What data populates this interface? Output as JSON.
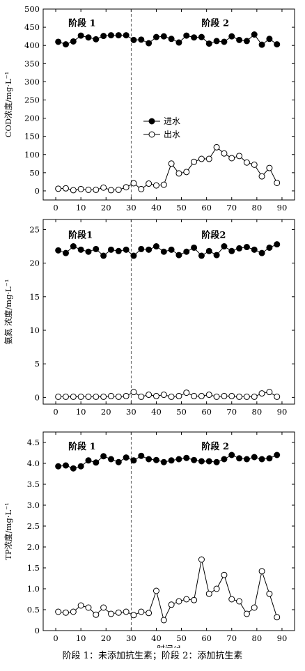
{
  "caption": "阶段 1：未添加抗生素；阶段 2：添加抗生素",
  "chart_data": [
    {
      "type": "line",
      "ylabel": "COD浓度/mg·L⁻¹",
      "xlabel": "",
      "xlim": [
        -5,
        95
      ],
      "ylim": [
        -25,
        500
      ],
      "xticks": [
        0,
        10,
        20,
        30,
        40,
        50,
        60,
        70,
        80,
        90
      ],
      "yticks": [
        0,
        50,
        100,
        150,
        200,
        250,
        300,
        350,
        400,
        450,
        500
      ],
      "stage_divider": 30,
      "stage_labels": [
        "阶段 1",
        "阶段 2"
      ],
      "legend": {
        "position": "middle",
        "entries": [
          "进水",
          "出水"
        ]
      },
      "series": [
        {
          "name": "进水",
          "marker": "filled",
          "x": [
            1,
            4,
            7,
            10,
            13,
            16,
            19,
            22,
            25,
            28,
            31,
            34,
            37,
            40,
            43,
            46,
            49,
            52,
            55,
            58,
            61,
            64,
            67,
            70,
            73,
            76,
            79,
            82,
            85,
            88
          ],
          "y": [
            410,
            403,
            411,
            427,
            422,
            417,
            426,
            428,
            428,
            428,
            415,
            416,
            406,
            423,
            425,
            418,
            408,
            427,
            422,
            423,
            405,
            412,
            410,
            425,
            415,
            412,
            430,
            402,
            418,
            403
          ]
        },
        {
          "name": "出水",
          "marker": "open",
          "x": [
            1,
            4,
            7,
            10,
            13,
            16,
            19,
            22,
            25,
            28,
            31,
            34,
            37,
            40,
            43,
            46,
            49,
            52,
            55,
            58,
            61,
            64,
            67,
            70,
            73,
            76,
            79,
            82,
            85,
            88
          ],
          "y": [
            6,
            7,
            2,
            5,
            3,
            3,
            9,
            2,
            3,
            10,
            21,
            5,
            20,
            15,
            17,
            75,
            48,
            52,
            80,
            88,
            88,
            120,
            103,
            90,
            96,
            78,
            72,
            40,
            63,
            22
          ]
        }
      ]
    },
    {
      "type": "line",
      "ylabel": "氨氮 浓度/mg·L⁻¹",
      "xlabel": "",
      "xlim": [
        -5,
        95
      ],
      "ylim": [
        -1,
        26.5
      ],
      "xticks": [
        0,
        10,
        20,
        30,
        40,
        50,
        60,
        70,
        80,
        90
      ],
      "yticks": [
        0,
        5,
        10,
        15,
        20,
        25
      ],
      "stage_divider": 30,
      "stage_labels": [
        "阶段1",
        "阶段2"
      ],
      "series": [
        {
          "name": "进水",
          "marker": "filled",
          "x": [
            1,
            4,
            7,
            10,
            13,
            16,
            19,
            22,
            25,
            28,
            31,
            34,
            37,
            40,
            43,
            46,
            49,
            52,
            55,
            58,
            61,
            64,
            67,
            70,
            73,
            76,
            79,
            82,
            85,
            88
          ],
          "y": [
            21.9,
            21.5,
            22.5,
            22.0,
            21.7,
            22.1,
            21.1,
            22.0,
            21.8,
            22.0,
            21.1,
            22.1,
            22.0,
            22.5,
            21.7,
            22.0,
            21.2,
            21.7,
            22.3,
            21.1,
            21.8,
            21.2,
            22.5,
            21.8,
            22.2,
            22.4,
            22.0,
            21.5,
            22.3,
            22.8
          ]
        },
        {
          "name": "出水",
          "marker": "open",
          "x": [
            1,
            4,
            7,
            10,
            13,
            16,
            19,
            22,
            25,
            28,
            31,
            34,
            37,
            40,
            43,
            46,
            49,
            52,
            55,
            58,
            61,
            64,
            67,
            70,
            73,
            76,
            79,
            82,
            85,
            88
          ],
          "y": [
            0.1,
            0.1,
            0.1,
            0.1,
            0.1,
            0.1,
            0.1,
            0.2,
            0.1,
            0.2,
            0.8,
            0.1,
            0.4,
            0.2,
            0.4,
            0.1,
            0.2,
            0.7,
            0.2,
            0.2,
            0.4,
            0.1,
            0.2,
            0.2,
            0.1,
            0.1,
            0.1,
            0.6,
            0.8,
            0.1
          ]
        }
      ]
    },
    {
      "type": "line",
      "ylabel": "TP浓度/mg·L⁻¹",
      "xlabel": "时间/d",
      "xlim": [
        -5,
        95
      ],
      "ylim": [
        0,
        4.75
      ],
      "xticks": [
        0,
        10,
        20,
        30,
        40,
        50,
        60,
        70,
        80,
        90
      ],
      "yticks": [
        0,
        0.5,
        1.0,
        1.5,
        2.0,
        2.5,
        3.0,
        3.5,
        4.0,
        4.5
      ],
      "ytick_labels": [
        "0",
        "0.5",
        "1.0",
        "1.5",
        "2.0",
        "2.5",
        "3.0",
        "3.5",
        "4.0",
        "4.5"
      ],
      "stage_divider": 30,
      "stage_labels": [
        "阶段 1",
        "阶段 2"
      ],
      "series": [
        {
          "name": "进水",
          "marker": "filled",
          "x": [
            1,
            4,
            7,
            10,
            13,
            16,
            19,
            22,
            25,
            28,
            31,
            34,
            37,
            40,
            43,
            46,
            49,
            52,
            55,
            58,
            61,
            64,
            67,
            70,
            73,
            76,
            79,
            82,
            85,
            88
          ],
          "y": [
            3.93,
            3.95,
            3.88,
            3.93,
            4.07,
            4.02,
            4.17,
            4.1,
            4.03,
            4.14,
            4.07,
            4.18,
            4.1,
            4.08,
            4.03,
            4.07,
            4.1,
            4.13,
            4.08,
            4.05,
            4.05,
            4.03,
            4.1,
            4.2,
            4.12,
            4.1,
            4.15,
            4.1,
            4.12,
            4.2
          ]
        },
        {
          "name": "出水",
          "marker": "open",
          "x": [
            1,
            4,
            7,
            10,
            13,
            16,
            19,
            22,
            25,
            28,
            31,
            34,
            37,
            40,
            43,
            46,
            49,
            52,
            55,
            58,
            61,
            64,
            67,
            70,
            73,
            76,
            79,
            82,
            85,
            88
          ],
          "y": [
            0.45,
            0.43,
            0.45,
            0.6,
            0.55,
            0.38,
            0.55,
            0.4,
            0.43,
            0.45,
            0.37,
            0.45,
            0.42,
            0.95,
            0.25,
            0.62,
            0.7,
            0.75,
            0.73,
            1.7,
            0.88,
            1.0,
            1.33,
            0.75,
            0.7,
            0.4,
            0.55,
            1.42,
            0.88,
            0.32
          ]
        }
      ]
    }
  ]
}
